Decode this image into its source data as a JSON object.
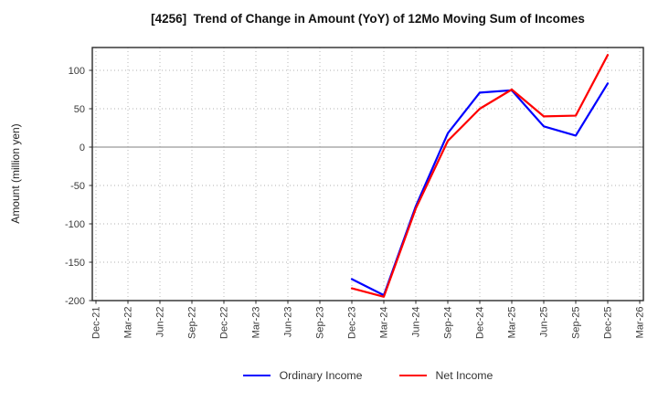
{
  "chart_data": {
    "type": "line",
    "title": "[4256]  Trend of Change in Amount (YoY) of 12Mo Moving Sum of Incomes",
    "ylabel": "Amount (million yen)",
    "xlabel": "",
    "categories": [
      "Dec-21",
      "Mar-22",
      "Jun-22",
      "Sep-22",
      "Dec-22",
      "Mar-23",
      "Jun-23",
      "Sep-23",
      "Dec-23",
      "Mar-24",
      "Jun-24",
      "Sep-24",
      "Dec-24",
      "Mar-25",
      "Jun-25",
      "Sep-25",
      "Dec-25",
      "Mar-26"
    ],
    "series": [
      {
        "name": "Ordinary Income",
        "color": "#0000ff",
        "start_index": 8,
        "values": [
          -172,
          -193,
          -77,
          18,
          71,
          74,
          27,
          15,
          83
        ]
      },
      {
        "name": "Net Income",
        "color": "#ff0000",
        "start_index": 8,
        "values": [
          -184,
          -195,
          -80,
          8,
          50,
          75,
          40,
          41,
          120
        ]
      }
    ],
    "yticks": [
      100,
      50,
      0,
      -50,
      -100,
      -150,
      -200
    ],
    "ylim": [
      -200,
      130
    ],
    "grid": true,
    "legend_position": "bottom-center",
    "colors": {
      "grid": "#b0b0b0",
      "zero_line": "#999999",
      "frame": "#2a2a2a",
      "tick_label": "#3a3a3a",
      "background": "#ffffff"
    }
  }
}
